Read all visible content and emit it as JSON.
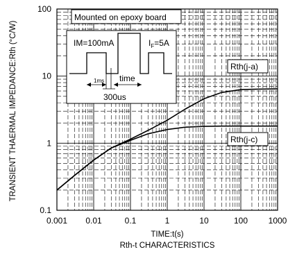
{
  "chart_data": {
    "type": "line",
    "xscale": "log",
    "yscale": "log",
    "xlim": [
      0.001,
      1000
    ],
    "ylim": [
      0.1,
      100
    ],
    "xticks": [
      "0.001",
      "0.01",
      "0.1",
      "1",
      "10",
      "100",
      "1000"
    ],
    "yticks": [
      "100",
      "10",
      "1",
      "0.1"
    ],
    "xlabel": "TIME:t(s)",
    "ylabel": "TRANSIENT THAERMAL IMPEDANCE:Rth (°C/W)",
    "caption": "Rth-t CHARACTERISTICS",
    "grid": true,
    "series": [
      {
        "name": "Rth(j-a)",
        "x": [
          0.001,
          0.003,
          0.01,
          0.03,
          0.1,
          0.3,
          1,
          3,
          10,
          30,
          100,
          300,
          1000
        ],
        "y": [
          0.2,
          0.33,
          0.56,
          0.85,
          1.15,
          1.55,
          2.2,
          3.2,
          4.6,
          5.7,
          6.3,
          6.4,
          6.45
        ]
      },
      {
        "name": "Rth(j-c)",
        "x": [
          0.001,
          0.003,
          0.01,
          0.03,
          0.1,
          0.3,
          1,
          3,
          10,
          30,
          100,
          300,
          1000
        ],
        "y": [
          0.2,
          0.33,
          0.56,
          0.85,
          1.1,
          1.38,
          1.6,
          1.73,
          1.78,
          1.8,
          1.8,
          1.8,
          1.8
        ]
      }
    ],
    "annotations": {
      "board": "Mounted on epoxy board",
      "im": "IM=100mA",
      "if_label": "I",
      "if_sub": "F",
      "if_value": "=5A",
      "pulse_width": "1ms",
      "time": "time",
      "period": "300us"
    },
    "colors": {
      "line": "#000000",
      "grid": "#000000",
      "background": "#ffffff"
    }
  }
}
